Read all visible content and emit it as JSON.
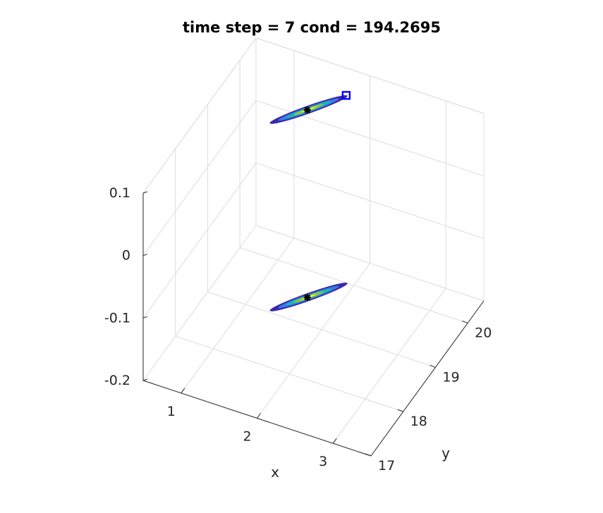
{
  "chart_data": {
    "type": "scatter",
    "title": "time step = 7 cond = 194.2695",
    "xlabel": "x",
    "ylabel": "y",
    "zlabel": "",
    "xlim": [
      0.5,
      3.5
    ],
    "ylim": [
      17,
      20.5
    ],
    "zlim": [
      -0.2,
      0.1
    ],
    "x_ticks": [
      "1",
      "2",
      "3"
    ],
    "y_ticks": [
      "17",
      "18",
      "19",
      "20"
    ],
    "z_ticks": [
      "0.1",
      "0",
      "-0.1",
      "-0.2"
    ],
    "grid": true,
    "series": [
      {
        "kind": "ellipse",
        "level": "upper",
        "center": {
          "x": 1.6,
          "y": 19.5,
          "z": 0.1
        },
        "colors": [
          "#3e26a8",
          "#2f7de1",
          "#18b8b0",
          "#a6c33c",
          "#f9fb0e"
        ]
      },
      {
        "kind": "ellipse",
        "level": "lower",
        "center": {
          "x": 1.6,
          "y": 19.5,
          "z": -0.2
        },
        "colors": [
          "#3e26a8",
          "#2f7de1",
          "#18b8b0",
          "#a6c33c",
          "#f9fb0e"
        ]
      },
      {
        "kind": "marker",
        "marker": "square",
        "color": "#0000ff",
        "point": {
          "x": 1.9,
          "y": 20.0,
          "z": 0.1
        }
      },
      {
        "kind": "marker",
        "marker": "asterisk",
        "color": "#000000",
        "points": [
          {
            "x": 1.6,
            "y": 19.5,
            "z": 0.1
          },
          {
            "x": 1.6,
            "y": 19.5,
            "z": -0.2
          }
        ]
      }
    ]
  }
}
